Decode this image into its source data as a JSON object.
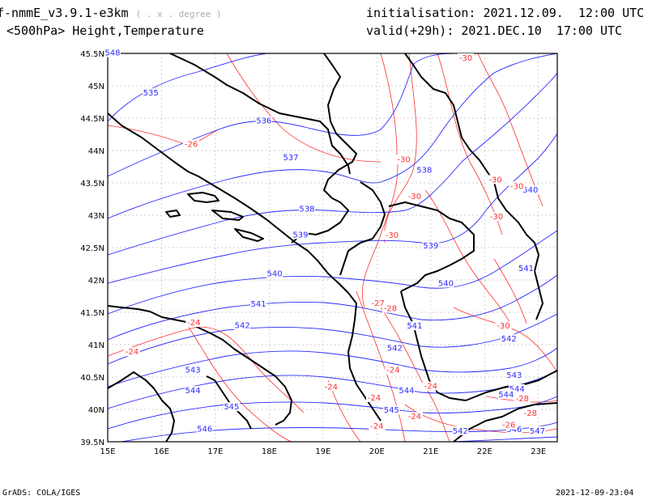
{
  "header": {
    "model": "f-nmmE_v3.9.1-e3km",
    "unit_note": "( . x . degree )",
    "field": "<500hPa> Height,Temperature",
    "init_label": "initialisation:",
    "init_value": "2021.12.09.  12:00 UTC",
    "valid_label": "valid(+29h):",
    "valid_value": "2021.DEC.10  17:00 UTC"
  },
  "axes": {
    "lat_labels": [
      "45.5N",
      "45N",
      "44.5N",
      "44N",
      "43.5N",
      "43N",
      "42.5N",
      "42N",
      "41.5N",
      "41N",
      "40.5N",
      "40N",
      "39.5N"
    ],
    "lon_labels": [
      "15E",
      "16E",
      "17E",
      "18E",
      "19E",
      "20E",
      "21E",
      "22E",
      "23E"
    ]
  },
  "height_labels": [
    {
      "text": "535",
      "lon": 15.8,
      "lat": 44.86
    },
    {
      "text": "536",
      "lon": 17.9,
      "lat": 44.43
    },
    {
      "text": "537",
      "lon": 18.4,
      "lat": 43.86
    },
    {
      "text": "538",
      "lon": 18.7,
      "lat": 43.07
    },
    {
      "text": "538",
      "lon": 20.88,
      "lat": 43.67
    },
    {
      "text": "539",
      "lon": 18.58,
      "lat": 42.67
    },
    {
      "text": "539",
      "lon": 21.0,
      "lat": 42.5
    },
    {
      "text": "540",
      "lon": 18.1,
      "lat": 42.07
    },
    {
      "text": "540",
      "lon": 21.28,
      "lat": 41.92
    },
    {
      "text": "541",
      "lon": 17.8,
      "lat": 41.6
    },
    {
      "text": "541",
      "lon": 20.7,
      "lat": 41.26
    },
    {
      "text": "541",
      "lon": 22.77,
      "lat": 42.15
    },
    {
      "text": "542",
      "lon": 17.5,
      "lat": 41.27
    },
    {
      "text": "542",
      "lon": 20.33,
      "lat": 40.92
    },
    {
      "text": "542",
      "lon": 22.45,
      "lat": 41.06
    },
    {
      "text": "543",
      "lon": 16.58,
      "lat": 40.58
    },
    {
      "text": "543",
      "lon": 22.55,
      "lat": 40.5
    },
    {
      "text": "544",
      "lon": 16.58,
      "lat": 40.26
    },
    {
      "text": "544",
      "lon": 20.55,
      "lat": 40.26
    },
    {
      "text": "544",
      "lon": 22.6,
      "lat": 40.29
    },
    {
      "text": "544",
      "lon": 22.4,
      "lat": 40.2
    },
    {
      "text": "545",
      "lon": 17.3,
      "lat": 40.01
    },
    {
      "text": "545",
      "lon": 20.27,
      "lat": 39.96
    },
    {
      "text": "546",
      "lon": 16.8,
      "lat": 39.67
    },
    {
      "text": "546",
      "lon": 22.55,
      "lat": 39.66
    },
    {
      "text": "547",
      "lon": 22.98,
      "lat": 39.64
    },
    {
      "text": "548",
      "lon": 15.09,
      "lat": 45.48
    },
    {
      "text": "540",
      "lon": 22.85,
      "lat": 43.36
    },
    {
      "text": "542",
      "lon": 21.55,
      "lat": 39.64
    }
  ],
  "temperature_labels": [
    {
      "text": "-30",
      "lon": 21.65,
      "lat": 45.4
    },
    {
      "text": "-26",
      "lon": 16.55,
      "lat": 44.07
    },
    {
      "text": "-30",
      "lon": 20.5,
      "lat": 43.83
    },
    {
      "text": "-30",
      "lon": 20.7,
      "lat": 43.26
    },
    {
      "text": "-30",
      "lon": 22.2,
      "lat": 43.52
    },
    {
      "text": "-30",
      "lon": 22.6,
      "lat": 43.42
    },
    {
      "text": "-30",
      "lon": 22.22,
      "lat": 42.95
    },
    {
      "text": "-30",
      "lon": 20.28,
      "lat": 42.66
    },
    {
      "text": "-27",
      "lon": 20.02,
      "lat": 41.61
    },
    {
      "text": "-28",
      "lon": 20.25,
      "lat": 41.53
    },
    {
      "text": "-30",
      "lon": 22.35,
      "lat": 41.26
    },
    {
      "text": "-24",
      "lon": 16.6,
      "lat": 41.31
    },
    {
      "text": "-24",
      "lon": 15.45,
      "lat": 40.86
    },
    {
      "text": "-24",
      "lon": 20.3,
      "lat": 40.58
    },
    {
      "text": "-24",
      "lon": 19.15,
      "lat": 40.32
    },
    {
      "text": "-24",
      "lon": 21.0,
      "lat": 40.33
    },
    {
      "text": "-24",
      "lon": 19.95,
      "lat": 40.15
    },
    {
      "text": "-24",
      "lon": 20.7,
      "lat": 39.86
    },
    {
      "text": "-24",
      "lon": 20.0,
      "lat": 39.71
    },
    {
      "text": "-28",
      "lon": 22.7,
      "lat": 40.14
    },
    {
      "text": "-28",
      "lon": 22.85,
      "lat": 39.91
    },
    {
      "text": "-26",
      "lon": 22.45,
      "lat": 39.73
    }
  ],
  "colors": {
    "height": "#2a2aff",
    "temperature": "#ff3030",
    "border": "#000000",
    "grid": "#c0c0c0"
  },
  "footer": {
    "left": "GrADS: COLA/IGES",
    "right": "2021-12-09-23:04"
  }
}
